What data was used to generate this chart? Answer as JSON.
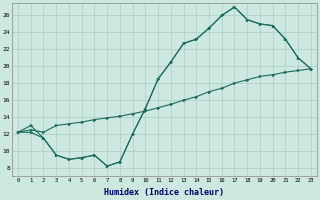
{
  "xlabel": "Humidex (Indice chaleur)",
  "bg_color": "#cce8e0",
  "grid_color": "#aaccc4",
  "line_color": "#1a6b5a",
  "xlim": [
    -0.5,
    23.5
  ],
  "ylim": [
    7,
    27.5
  ],
  "xticks": [
    0,
    1,
    2,
    3,
    4,
    5,
    6,
    7,
    8,
    9,
    10,
    11,
    12,
    13,
    14,
    15,
    16,
    17,
    18,
    19,
    20,
    21,
    22,
    23
  ],
  "yticks": [
    8,
    10,
    12,
    14,
    16,
    18,
    20,
    22,
    24,
    26
  ],
  "line1_x": [
    0,
    1,
    2,
    3,
    4,
    5,
    6,
    7,
    8,
    9,
    10,
    11,
    12,
    13,
    14,
    15,
    16,
    17,
    18,
    19,
    20,
    21,
    22,
    23
  ],
  "line1_y": [
    12.2,
    12.5,
    12.2,
    13.0,
    13.2,
    13.4,
    13.7,
    13.9,
    14.1,
    14.4,
    14.7,
    15.1,
    15.5,
    16.0,
    16.4,
    17.0,
    17.4,
    18.0,
    18.4,
    18.8,
    19.0,
    19.3,
    19.5,
    19.7
  ],
  "line2_x": [
    0,
    1,
    2,
    3,
    4,
    5,
    6,
    7,
    8,
    9,
    10,
    11,
    12,
    13,
    14,
    15,
    16,
    17,
    18,
    19,
    20,
    21,
    22,
    23
  ],
  "line2_y": [
    12.2,
    13.0,
    11.5,
    9.5,
    9.0,
    9.2,
    9.5,
    8.2,
    8.7,
    12.0,
    15.0,
    18.5,
    20.5,
    22.7,
    23.2,
    24.5,
    26.0,
    27.0,
    25.5,
    25.0,
    24.8,
    23.2,
    21.0,
    19.7
  ],
  "line3_x": [
    0,
    1,
    2,
    3,
    4,
    5,
    6,
    7,
    8,
    9,
    10,
    11,
    12,
    13,
    14,
    15,
    16,
    17,
    18,
    19,
    20,
    21,
    22,
    23
  ],
  "line3_y": [
    12.2,
    12.2,
    11.5,
    9.5,
    9.0,
    9.2,
    9.5,
    8.2,
    8.7,
    12.0,
    15.0,
    18.5,
    20.5,
    22.7,
    23.2,
    24.5,
    26.0,
    27.0,
    25.5,
    25.0,
    24.8,
    23.2,
    21.0,
    19.7
  ]
}
